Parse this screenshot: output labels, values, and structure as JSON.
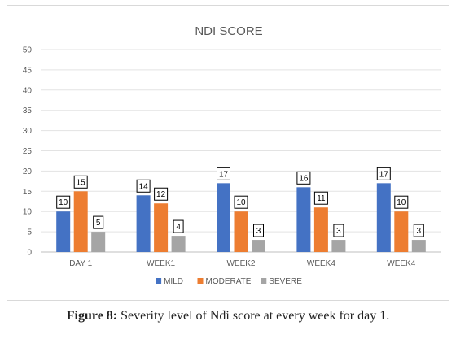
{
  "chart_data": {
    "type": "bar",
    "title": "NDI SCORE",
    "categories": [
      "DAY 1",
      "WEEK1",
      "WEEK2",
      "WEEK4",
      "WEEK4"
    ],
    "series": [
      {
        "name": "MILD",
        "values": [
          10,
          14,
          17,
          16,
          17
        ],
        "color": "#4472c4"
      },
      {
        "name": "MODERATE",
        "values": [
          15,
          12,
          10,
          11,
          10
        ],
        "color": "#ed7d31"
      },
      {
        "name": "SEVERE",
        "values": [
          5,
          4,
          3,
          3,
          3
        ],
        "color": "#a5a5a5"
      }
    ],
    "ylim": [
      0,
      50
    ],
    "yticks": [
      0,
      5,
      10,
      15,
      20,
      25,
      30,
      35,
      40,
      45,
      50
    ],
    "grid": true,
    "legend_position": "bottom",
    "data_labels": true
  },
  "caption": {
    "label": "Figure 8:",
    "text": " Severity level of Ndi score at every week for day 1."
  }
}
